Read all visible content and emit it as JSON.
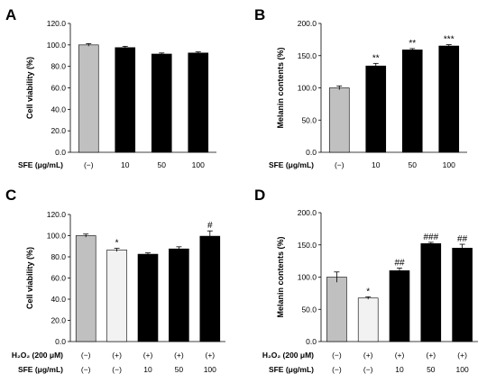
{
  "figure": {
    "title": ""
  },
  "colors": {
    "gray": "#c0c0c0",
    "white": "#f2f2f2",
    "black": "#000000"
  },
  "chart_data": [
    {
      "panel": "A",
      "type": "bar",
      "ylabel": "Cell viability (%)",
      "ylim": [
        0,
        120
      ],
      "yticks": [
        "0.0",
        "20.0",
        "40.0",
        "60.0",
        "80.0",
        "100.0",
        "120.0"
      ],
      "rows": [
        {
          "label": "SFE (μg/mL)",
          "values": [
            "(−)",
            "10",
            "50",
            "100"
          ]
        }
      ],
      "values": [
        100,
        97.5,
        91.5,
        92.5
      ],
      "errors": [
        1.2,
        1.2,
        1.0,
        1.0
      ],
      "fills": [
        "gray",
        "black",
        "black",
        "black"
      ],
      "sig": [
        "",
        "",
        "",
        ""
      ]
    },
    {
      "panel": "B",
      "type": "bar",
      "ylabel": "Melanin contents (%)",
      "ylim": [
        0,
        200
      ],
      "yticks": [
        "0.0",
        "50.0",
        "100.0",
        "150.0",
        "200.0"
      ],
      "rows": [
        {
          "label": "SFE (μg/mL)",
          "values": [
            "(−)",
            "10",
            "50",
            "100"
          ]
        }
      ],
      "values": [
        100,
        134,
        159,
        165
      ],
      "errors": [
        3,
        4,
        2,
        2
      ],
      "fills": [
        "gray",
        "black",
        "black",
        "black"
      ],
      "sig": [
        "",
        "**",
        "**",
        "***"
      ]
    },
    {
      "panel": "C",
      "type": "bar",
      "ylabel": "Cell viability (%)",
      "ylim": [
        0,
        120
      ],
      "yticks": [
        "0.0",
        "20.0",
        "40.0",
        "60.0",
        "80.0",
        "100.0",
        "120.0"
      ],
      "rows": [
        {
          "label": "H₂O₂ (200 μM)",
          "values": [
            "(−)",
            "(+)",
            "(+)",
            "(+)",
            "(+)"
          ]
        },
        {
          "label": "SFE (μg/mL)",
          "values": [
            "(−)",
            "(−)",
            "10",
            "50",
            "100"
          ]
        }
      ],
      "values": [
        100,
        86.5,
        82.5,
        87.5,
        99.5
      ],
      "errors": [
        1.5,
        1.5,
        1.2,
        2,
        5
      ],
      "fills": [
        "gray",
        "white",
        "black",
        "black",
        "black"
      ],
      "sig": [
        "",
        "*",
        "",
        "",
        "#"
      ]
    },
    {
      "panel": "D",
      "type": "bar",
      "ylabel": "Melanin contents (%)",
      "ylim": [
        0,
        200
      ],
      "yticks": [
        "0.0",
        "50.0",
        "100.0",
        "150.0",
        "200.0"
      ],
      "rows": [
        {
          "label": "H₂O₂ (200 μM)",
          "values": [
            "(−)",
            "(+)",
            "(+)",
            "(+)",
            "(+)"
          ]
        },
        {
          "label": "SFE (μg/mL)",
          "values": [
            "(−)",
            "(−)",
            "10",
            "50",
            "100"
          ]
        }
      ],
      "values": [
        100,
        67.5,
        110,
        152,
        145
      ],
      "errors": [
        8,
        2,
        4,
        2,
        6
      ],
      "fills": [
        "gray",
        "white",
        "black",
        "black",
        "black"
      ],
      "sig": [
        "",
        "*",
        "##",
        "###",
        "##"
      ]
    }
  ]
}
